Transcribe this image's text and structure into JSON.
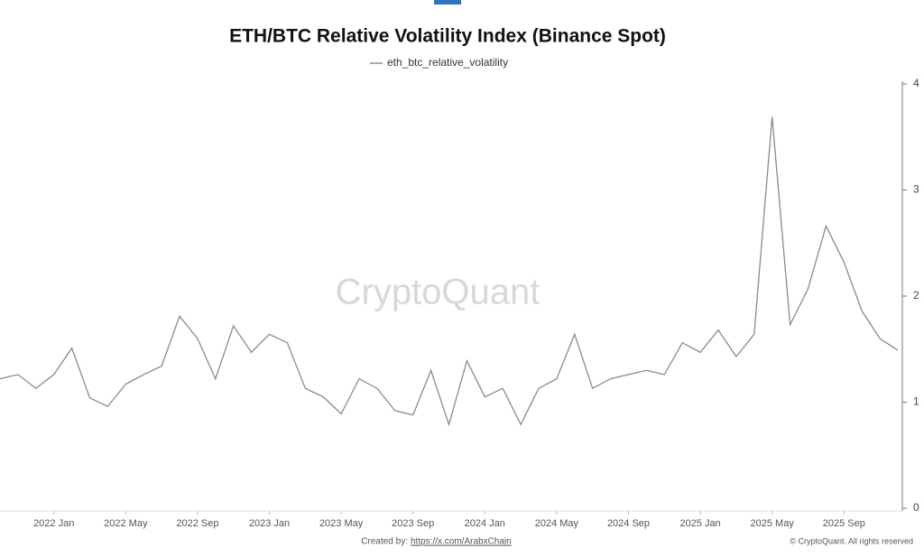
{
  "chart_data": {
    "type": "line",
    "title": "ETH/BTC Relative Volatility Index (Binance Spot)",
    "watermark": "CryptoQuant",
    "footer": {
      "created_by": "Created by:",
      "link": "https://x.com/ArabxChain",
      "copyright": "© CryptoQuant. All rights reserved"
    },
    "x": [
      "2021-10",
      "2021-11",
      "2021-12",
      "2022-01",
      "2022-02",
      "2022-03",
      "2022-04",
      "2022-05",
      "2022-06",
      "2022-07",
      "2022-08",
      "2022-09",
      "2022-10",
      "2022-11",
      "2022-12",
      "2023-01",
      "2023-02",
      "2023-03",
      "2023-04",
      "2023-05",
      "2023-06",
      "2023-07",
      "2023-08",
      "2023-09",
      "2023-10",
      "2023-11",
      "2023-12",
      "2024-01",
      "2024-02",
      "2024-03",
      "2024-04",
      "2024-05",
      "2024-06",
      "2024-07",
      "2024-08",
      "2024-09",
      "2024-10",
      "2024-11",
      "2024-12",
      "2025-01",
      "2025-02",
      "2025-03",
      "2025-04",
      "2025-05",
      "2025-06",
      "2025-07",
      "2025-08",
      "2025-09",
      "2025-10",
      "2025-11",
      "2025-12"
    ],
    "series": [
      {
        "name": "eth_btc_relative_volatility",
        "color": "#8a8a90",
        "values": [
          1.22,
          1.26,
          1.13,
          1.26,
          1.51,
          1.04,
          0.96,
          1.17,
          1.26,
          1.34,
          1.81,
          1.6,
          1.22,
          1.72,
          1.47,
          1.64,
          1.56,
          1.13,
          1.05,
          0.89,
          1.22,
          1.13,
          0.92,
          0.88,
          1.3,
          0.79,
          1.39,
          1.05,
          1.13,
          0.79,
          1.13,
          1.22,
          1.64,
          1.13,
          1.22,
          1.26,
          1.3,
          1.26,
          1.56,
          1.47,
          1.68,
          1.43,
          1.64,
          3.69,
          1.73,
          2.07,
          2.66,
          2.32,
          1.86,
          1.6,
          1.49
        ]
      }
    ],
    "xlim": [
      "2021-10",
      "2025-12"
    ],
    "xticks": [
      {
        "value": "2022-01",
        "label": "2022 Jan"
      },
      {
        "value": "2022-05",
        "label": "2022 May"
      },
      {
        "value": "2022-09",
        "label": "2022 Sep"
      },
      {
        "value": "2023-01",
        "label": "2023 Jan"
      },
      {
        "value": "2023-05",
        "label": "2023 May"
      },
      {
        "value": "2023-09",
        "label": "2023 Sep"
      },
      {
        "value": "2024-01",
        "label": "2024 Jan"
      },
      {
        "value": "2024-05",
        "label": "2024 May"
      },
      {
        "value": "2024-09",
        "label": "2024 Sep"
      },
      {
        "value": "2025-01",
        "label": "2025 Jan"
      },
      {
        "value": "2025-05",
        "label": "2025 May"
      },
      {
        "value": "2025-09",
        "label": "2025 Sep"
      }
    ],
    "ylim": [
      0,
      4
    ],
    "yticks": [
      0,
      1,
      2,
      3,
      4
    ],
    "y_axis_side": "right"
  }
}
